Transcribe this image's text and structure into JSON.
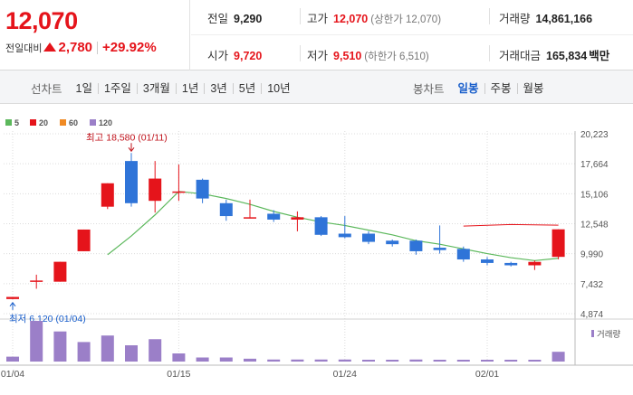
{
  "quote": {
    "price": "12,070",
    "change_label": "전일대비",
    "change_value": "2,780",
    "change_rate": "+29.92%",
    "direction": "up",
    "stats": {
      "prev_close": {
        "label": "전일",
        "value": "9,290"
      },
      "high": {
        "label": "고가",
        "value": "12,070",
        "note": "(상한가 12,070)"
      },
      "volume": {
        "label": "거래량",
        "value": "14,861,166"
      },
      "open": {
        "label": "시가",
        "value": "9,720"
      },
      "low": {
        "label": "저가",
        "value": "9,510",
        "note": "(하한가 6,510)"
      },
      "trade_amount": {
        "label": "거래대금",
        "value": "165,834",
        "unit": "백만"
      }
    }
  },
  "toolbar": {
    "line_chart": {
      "title": "선차트",
      "periods": [
        "1일",
        "1주일",
        "3개월",
        "1년",
        "3년",
        "5년",
        "10년"
      ]
    },
    "candle_chart": {
      "title": "봉차트",
      "periods": [
        "일봉",
        "주봉",
        "월봉"
      ],
      "active": "일봉"
    }
  },
  "chart_data": {
    "type": "candlestick",
    "legend": [
      {
        "label": "5",
        "color": "#5cb85c"
      },
      {
        "label": "20",
        "color": "#e5141b"
      },
      {
        "label": "60",
        "color": "#f08a24"
      },
      {
        "label": "120",
        "color": "#9b7fc8"
      }
    ],
    "y_ticks": [
      "20,223",
      "17,664",
      "15,106",
      "12,548",
      "9,990",
      "7,432",
      "4,874"
    ],
    "ylim": [
      4874,
      20223
    ],
    "x_ticks": [
      {
        "label": "01/04",
        "index": 0
      },
      {
        "label": "01/15",
        "index": 7
      },
      {
        "label": "01/24",
        "index": 14
      },
      {
        "label": "02/01",
        "index": 20
      }
    ],
    "candles": [
      {
        "o": 6120,
        "h": 6300,
        "l": 6120,
        "c": 6300
      },
      {
        "o": 7700,
        "h": 8200,
        "l": 7000,
        "c": 7700
      },
      {
        "o": 7600,
        "h": 9300,
        "l": 7600,
        "c": 9300
      },
      {
        "o": 10200,
        "h": 12050,
        "l": 10200,
        "c": 12050
      },
      {
        "o": 14000,
        "h": 16000,
        "l": 13800,
        "c": 16000
      },
      {
        "o": 17900,
        "h": 18580,
        "l": 14000,
        "c": 14300
      },
      {
        "o": 14500,
        "h": 17900,
        "l": 13500,
        "c": 16400
      },
      {
        "o": 15300,
        "h": 17600,
        "l": 14500,
        "c": 15300
      },
      {
        "o": 16300,
        "h": 16400,
        "l": 14300,
        "c": 14700
      },
      {
        "o": 14300,
        "h": 14600,
        "l": 12800,
        "c": 13200
      },
      {
        "o": 13100,
        "h": 14600,
        "l": 13000,
        "c": 13100
      },
      {
        "o": 13400,
        "h": 13700,
        "l": 12700,
        "c": 12900
      },
      {
        "o": 12900,
        "h": 13600,
        "l": 11900,
        "c": 13100
      },
      {
        "o": 13100,
        "h": 13200,
        "l": 11500,
        "c": 11600
      },
      {
        "o": 11700,
        "h": 13200,
        "l": 11300,
        "c": 11400
      },
      {
        "o": 11700,
        "h": 11900,
        "l": 10800,
        "c": 11000
      },
      {
        "o": 11100,
        "h": 11200,
        "l": 10600,
        "c": 10800
      },
      {
        "o": 11100,
        "h": 11200,
        "l": 9900,
        "c": 10200
      },
      {
        "o": 10500,
        "h": 12400,
        "l": 10000,
        "c": 10300
      },
      {
        "o": 10400,
        "h": 10600,
        "l": 9300,
        "c": 9500
      },
      {
        "o": 9500,
        "h": 9700,
        "l": 9000,
        "c": 9200
      },
      {
        "o": 9200,
        "h": 9300,
        "l": 8900,
        "c": 9000
      },
      {
        "o": 9000,
        "h": 9400,
        "l": 8600,
        "c": 9290
      },
      {
        "o": 9720,
        "h": 12070,
        "l": 9510,
        "c": 12070
      }
    ],
    "ma5": [
      {
        "i": 4,
        "v": 9900
      },
      {
        "i": 5,
        "v": 11500
      },
      {
        "i": 6,
        "v": 13300
      },
      {
        "i": 7,
        "v": 15300
      },
      {
        "i": 8,
        "v": 15100
      },
      {
        "i": 9,
        "v": 14700
      },
      {
        "i": 10,
        "v": 14200
      },
      {
        "i": 11,
        "v": 13600
      },
      {
        "i": 12,
        "v": 13100
      },
      {
        "i": 13,
        "v": 12700
      },
      {
        "i": 14,
        "v": 12400
      },
      {
        "i": 15,
        "v": 12000
      },
      {
        "i": 16,
        "v": 11600
      },
      {
        "i": 17,
        "v": 11100
      },
      {
        "i": 18,
        "v": 10800
      },
      {
        "i": 19,
        "v": 10400
      },
      {
        "i": 20,
        "v": 10000
      },
      {
        "i": 21,
        "v": 9650
      },
      {
        "i": 22,
        "v": 9400
      },
      {
        "i": 23,
        "v": 9600
      }
    ],
    "ma20": [
      {
        "i": 19,
        "v": 12350
      },
      {
        "i": 21,
        "v": 12480
      },
      {
        "i": 23,
        "v": 12420
      }
    ],
    "volume_label": "거래량",
    "volume": [
      0.12,
      1.0,
      0.74,
      0.48,
      0.64,
      0.4,
      0.55,
      0.2,
      0.1,
      0.1,
      0.07,
      0.05,
      0.05,
      0.05,
      0.05,
      0.04,
      0.03,
      0.05,
      0.04,
      0.03,
      0.03,
      0.03,
      0.03,
      0.24
    ],
    "annotations": {
      "high": {
        "label": "최고 18,580 (01/11)",
        "index": 5
      },
      "low": {
        "label": "최저 6,120 (01/04)",
        "index": 0
      }
    }
  }
}
